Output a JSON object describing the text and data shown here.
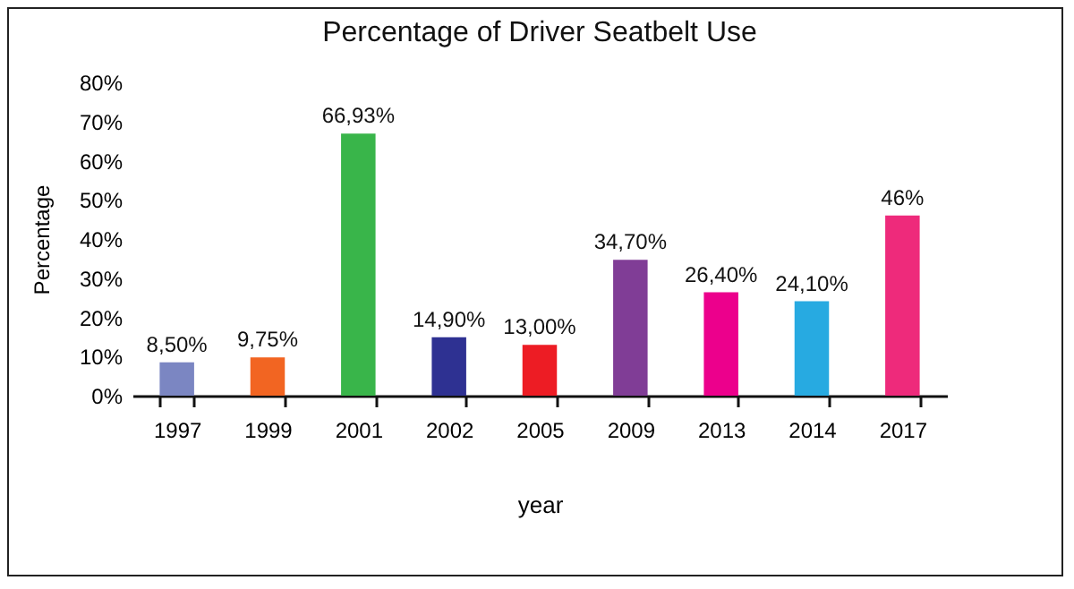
{
  "chart_data": {
    "type": "bar",
    "title": "Percentage of Driver Seatbelt Use",
    "xlabel": "year",
    "ylabel": "Percentage",
    "categories": [
      "1997",
      "1999",
      "2001",
      "2002",
      "2005",
      "2009",
      "2013",
      "2014",
      "2017"
    ],
    "values": [
      8.5,
      9.75,
      66.93,
      14.9,
      13.0,
      34.7,
      26.4,
      24.1,
      46
    ],
    "colors": [
      "#7b86c2",
      "#f26522",
      "#39b54a",
      "#2e3192",
      "#ed1c24",
      "#803d96",
      "#ec008c",
      "#27aae1",
      "#ee2a7b"
    ],
    "value_labels": [
      "8,50%",
      "9,75%",
      "66,93%",
      "14,90%",
      "13,00%",
      "34,70%",
      "26,40%",
      "24,10%",
      "46%"
    ],
    "ylim": [
      0,
      80
    ],
    "yticks": [
      {
        "value": 0,
        "label": "0%"
      },
      {
        "value": 10,
        "label": "10%"
      },
      {
        "value": 20,
        "label": "20%"
      },
      {
        "value": 30,
        "label": "30%"
      },
      {
        "value": 40,
        "label": "40%"
      },
      {
        "value": 50,
        "label": "50%"
      },
      {
        "value": 60,
        "label": "60%"
      },
      {
        "value": 70,
        "label": "70%"
      },
      {
        "value": 80,
        "label": "80%"
      }
    ]
  }
}
